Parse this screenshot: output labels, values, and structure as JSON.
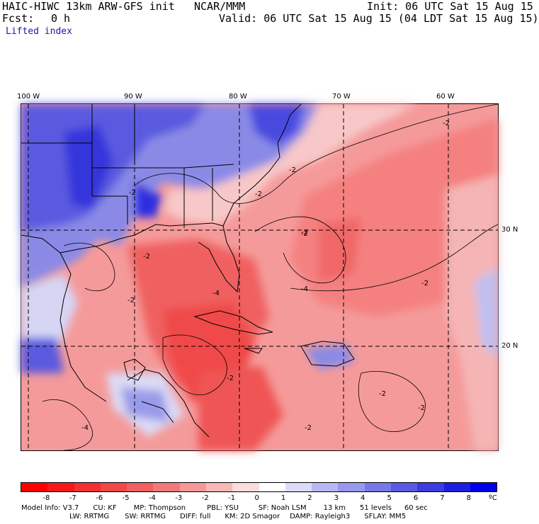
{
  "header": {
    "model_title": "HAIC-HIWC 13km ARW-GFS init",
    "org": "NCAR/MMM",
    "init": "Init: 06 UTC Sat 15 Aug 15",
    "fcst_label": "Fcst:",
    "fcst_value": "0 h",
    "valid": "Valid: 06 UTC Sat 15 Aug 15 (04 LDT Sat 15 Aug 15)",
    "field": "Lifted index"
  },
  "map": {
    "lon_labels": [
      "100 W",
      "90 W",
      "80 W",
      "70 W",
      "60 W"
    ],
    "lat_labels": [
      "30 N",
      "20 N"
    ],
    "contour_labels": [
      "-2",
      "-2",
      "-2",
      "-2",
      "-2",
      "-2",
      "-2",
      "-2",
      "-2",
      "-4",
      "-4",
      "-4",
      "-2",
      "-2",
      "-2",
      "-2"
    ],
    "colors": {
      "negative_strong": "#f03030",
      "negative_mid": "#f57070",
      "negative_light": "#f9aaaa",
      "neutral": "#ffffff",
      "positive_light": "#b8b8f0",
      "positive_mid": "#7a7ae8",
      "positive_strong": "#3030e0"
    }
  },
  "colorbar": {
    "labels": [
      "-8",
      "-7",
      "-6",
      "-5",
      "-4",
      "-3",
      "-2",
      "-1",
      "0",
      "1",
      "2",
      "3",
      "4",
      "5",
      "6",
      "7",
      "8",
      "ºC"
    ],
    "colors": [
      "#ff0000",
      "#f81818",
      "#f53030",
      "#f24848",
      "#ef6060",
      "#f07a7a",
      "#f49898",
      "#f8b8b8",
      "#fcdcdc",
      "#ffffff",
      "#dcdcfa",
      "#b8b8f4",
      "#9898ee",
      "#7878e8",
      "#5a5ae4",
      "#3c3ce0",
      "#1e1ee0",
      "#0000e8"
    ]
  },
  "model_info": {
    "line1": [
      {
        "k": "Model Info:",
        "v": "V3.7"
      },
      {
        "k": "CU:",
        "v": "KF"
      },
      {
        "k": "MP:",
        "v": "Thompson"
      },
      {
        "k": "PBL:",
        "v": "YSU"
      },
      {
        "k": "SF:",
        "v": "Noah LSM"
      },
      {
        "k": "",
        "v": "13 km"
      },
      {
        "k": "",
        "v": "51 levels"
      },
      {
        "k": "",
        "v": "60 sec"
      }
    ],
    "line2": [
      {
        "k": "LW:",
        "v": "RRTMG"
      },
      {
        "k": "SW:",
        "v": "RRTMG"
      },
      {
        "k": "DIFF:",
        "v": "full"
      },
      {
        "k": "KM:",
        "v": "2D Smagor"
      },
      {
        "k": "DAMP:",
        "v": "Rayleigh3"
      },
      {
        "k": "SFLAY:",
        "v": "MM5"
      }
    ]
  }
}
